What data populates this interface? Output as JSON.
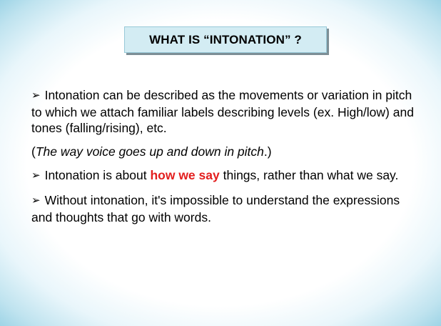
{
  "slide": {
    "title": "WHAT IS “INTONATION” ?",
    "bullet_glyph": "➢",
    "point1": "Intonation can be described as the movements or variation in pitch to which we attach familiar labels describing levels (ex. High/low) and tones (falling/rising), etc.",
    "note_open": "(",
    "note_italic": "The way voice goes up and down in pitch",
    "note_close": ".)",
    "point2_before": "Intonation is about ",
    "point2_highlight": "how we say",
    "point2_after": " things, rather than what we say.",
    "point3": "Without intonation, it's impossible to understand the expressions and thoughts that go with words."
  },
  "colors": {
    "highlight": "#e31e1e",
    "title_box_bg": "#d3ecf3",
    "border_glow": "#9ed4e6"
  }
}
